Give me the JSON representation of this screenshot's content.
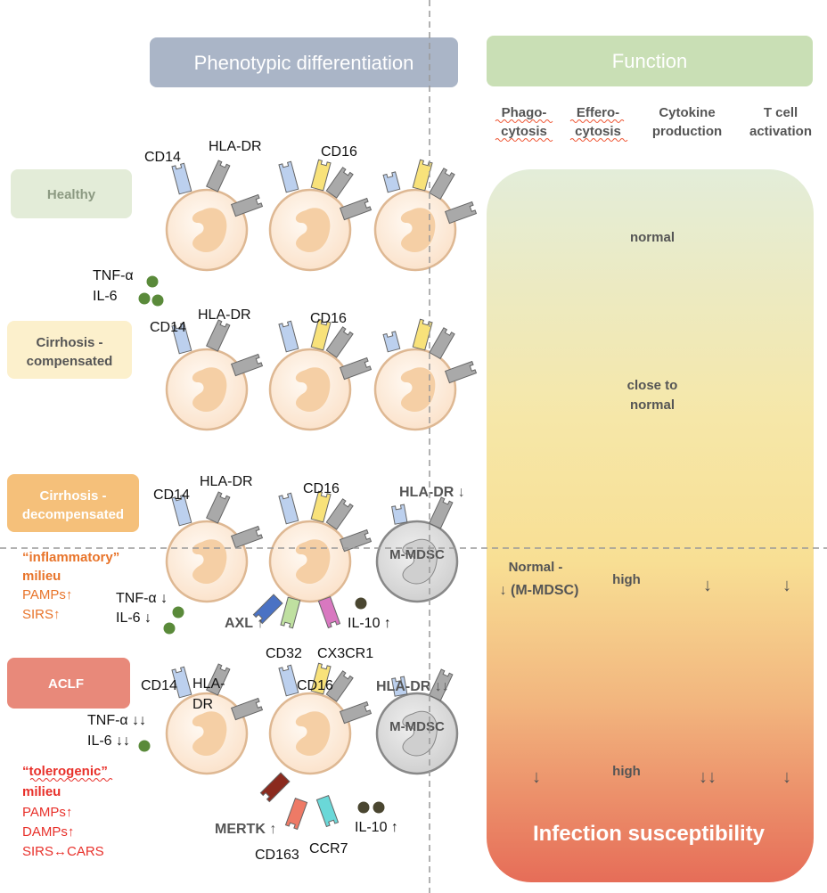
{
  "headers": {
    "phenotypic": "Phenotypic differentiation",
    "function": "Function"
  },
  "function_columns": [
    {
      "line1": "Phago-",
      "line2": "cytosis"
    },
    {
      "line1": "Effero-",
      "line2": "cytosis"
    },
    {
      "line1": "Cytokine",
      "line2": "production"
    },
    {
      "line1": "T cell",
      "line2": "activation"
    }
  ],
  "stages": [
    {
      "name": "Healthy",
      "color": "#e3ecd8"
    },
    {
      "line1": "Cirrhosis -",
      "line2": "compensated",
      "color": "#fcf0cc"
    },
    {
      "line1": "Cirrhosis -",
      "line2": "decompensated",
      "color": "#f5c07a"
    },
    {
      "name": "ACLF",
      "color": "#e8897a"
    }
  ],
  "rows": {
    "healthy": {
      "cd14": "CD14",
      "hladr": "HLA-DR",
      "cd16": "CD16",
      "tnf": "TNF-α",
      "il6": "IL-6",
      "function": "normal"
    },
    "compensated": {
      "cd14": "CD14",
      "hladr": "HLA-DR",
      "cd16": "CD16",
      "function_line1": "close to",
      "function_line2": "normal"
    },
    "decompensated": {
      "cd14": "CD14",
      "hladr": "HLA-DR",
      "cd16": "CD16",
      "hladr_mdsc": "HLA-DR ↓",
      "mdsc": "M-MDSC",
      "milieu_line1": "“inflammatory”",
      "milieu_line2": "milieu",
      "pamps": "PAMPs↑",
      "sirs": "SIRS↑",
      "tnf": "TNF-α ↓",
      "il6": "IL-6 ↓",
      "axl": "AXL ↑",
      "cd32": "CD32",
      "cx3cr1": "CX3CR1",
      "il10": "IL-10 ↑",
      "phago": "Normal -",
      "phago2": "↓ (M-MDSC)",
      "effero": "high",
      "cytokine": "↓",
      "tcell": "↓"
    },
    "aclf": {
      "cd14": "CD14",
      "hladr1": "HLA-",
      "hladr2": "DR",
      "cd16": "CD16",
      "hladr_mdsc": "HLA-DR ↓↓",
      "mdsc": "M-MDSC",
      "milieu_line1": "“tolerogenic”",
      "milieu_line2": "milieu",
      "pamps": "PAMPs↑",
      "damps": "DAMPs↑",
      "sirs": "SIRS↔CARS",
      "tnf": "TNF-α ↓↓",
      "il6": "IL-6 ↓↓",
      "mertk": "MERTK ↑",
      "cd163": "CD163",
      "ccr7": "CCR7",
      "il10": "IL-10 ↑",
      "phago": "↓",
      "effero": "high",
      "cytokine": "↓↓",
      "tcell": "↓"
    }
  },
  "footer": "Infection susceptibility",
  "colors": {
    "cd14": "#bcd0ee",
    "hladr": "#a9a9a9",
    "cd16": "#f8e27a",
    "axl": "#4a72c4",
    "cd32": "#bfe0a0",
    "cx3cr1": "#d878c0",
    "mertk": "#8b2a1e",
    "cd163": "#ee7a66",
    "ccr7": "#6ad8d8",
    "cytokine_green": "#5a8a3a",
    "il10": "#4a4630"
  }
}
